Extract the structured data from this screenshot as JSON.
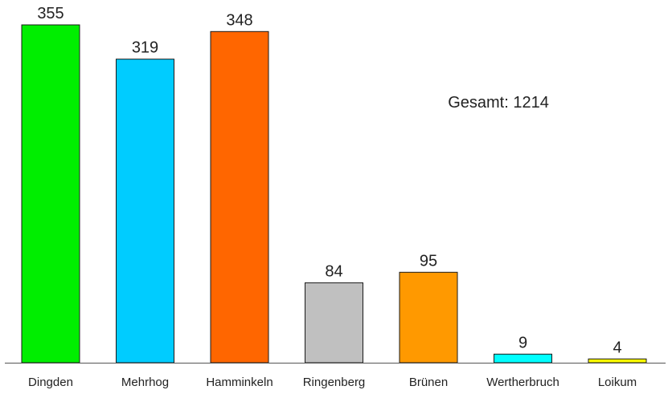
{
  "chart_data": {
    "type": "bar",
    "categories": [
      "Dingden",
      "Mehrhog",
      "Hamminkeln",
      "Ringenberg",
      "Brünen",
      "Wertherbruch",
      "Loikum"
    ],
    "values": [
      355,
      319,
      348,
      84,
      95,
      9,
      4
    ],
    "value_labels": [
      "355",
      "319",
      "348",
      "84",
      "95",
      "9",
      "4"
    ],
    "colors": [
      "#00ee00",
      "#00ccff",
      "#ff6600",
      "#c0c0c0",
      "#ff9900",
      "#00ffff",
      "#ffff00"
    ],
    "title": "",
    "xlabel": "",
    "ylabel": "",
    "ylim": [
      0,
      355
    ],
    "grid": false,
    "annotation": {
      "label": "Gesamt: 1214"
    }
  }
}
